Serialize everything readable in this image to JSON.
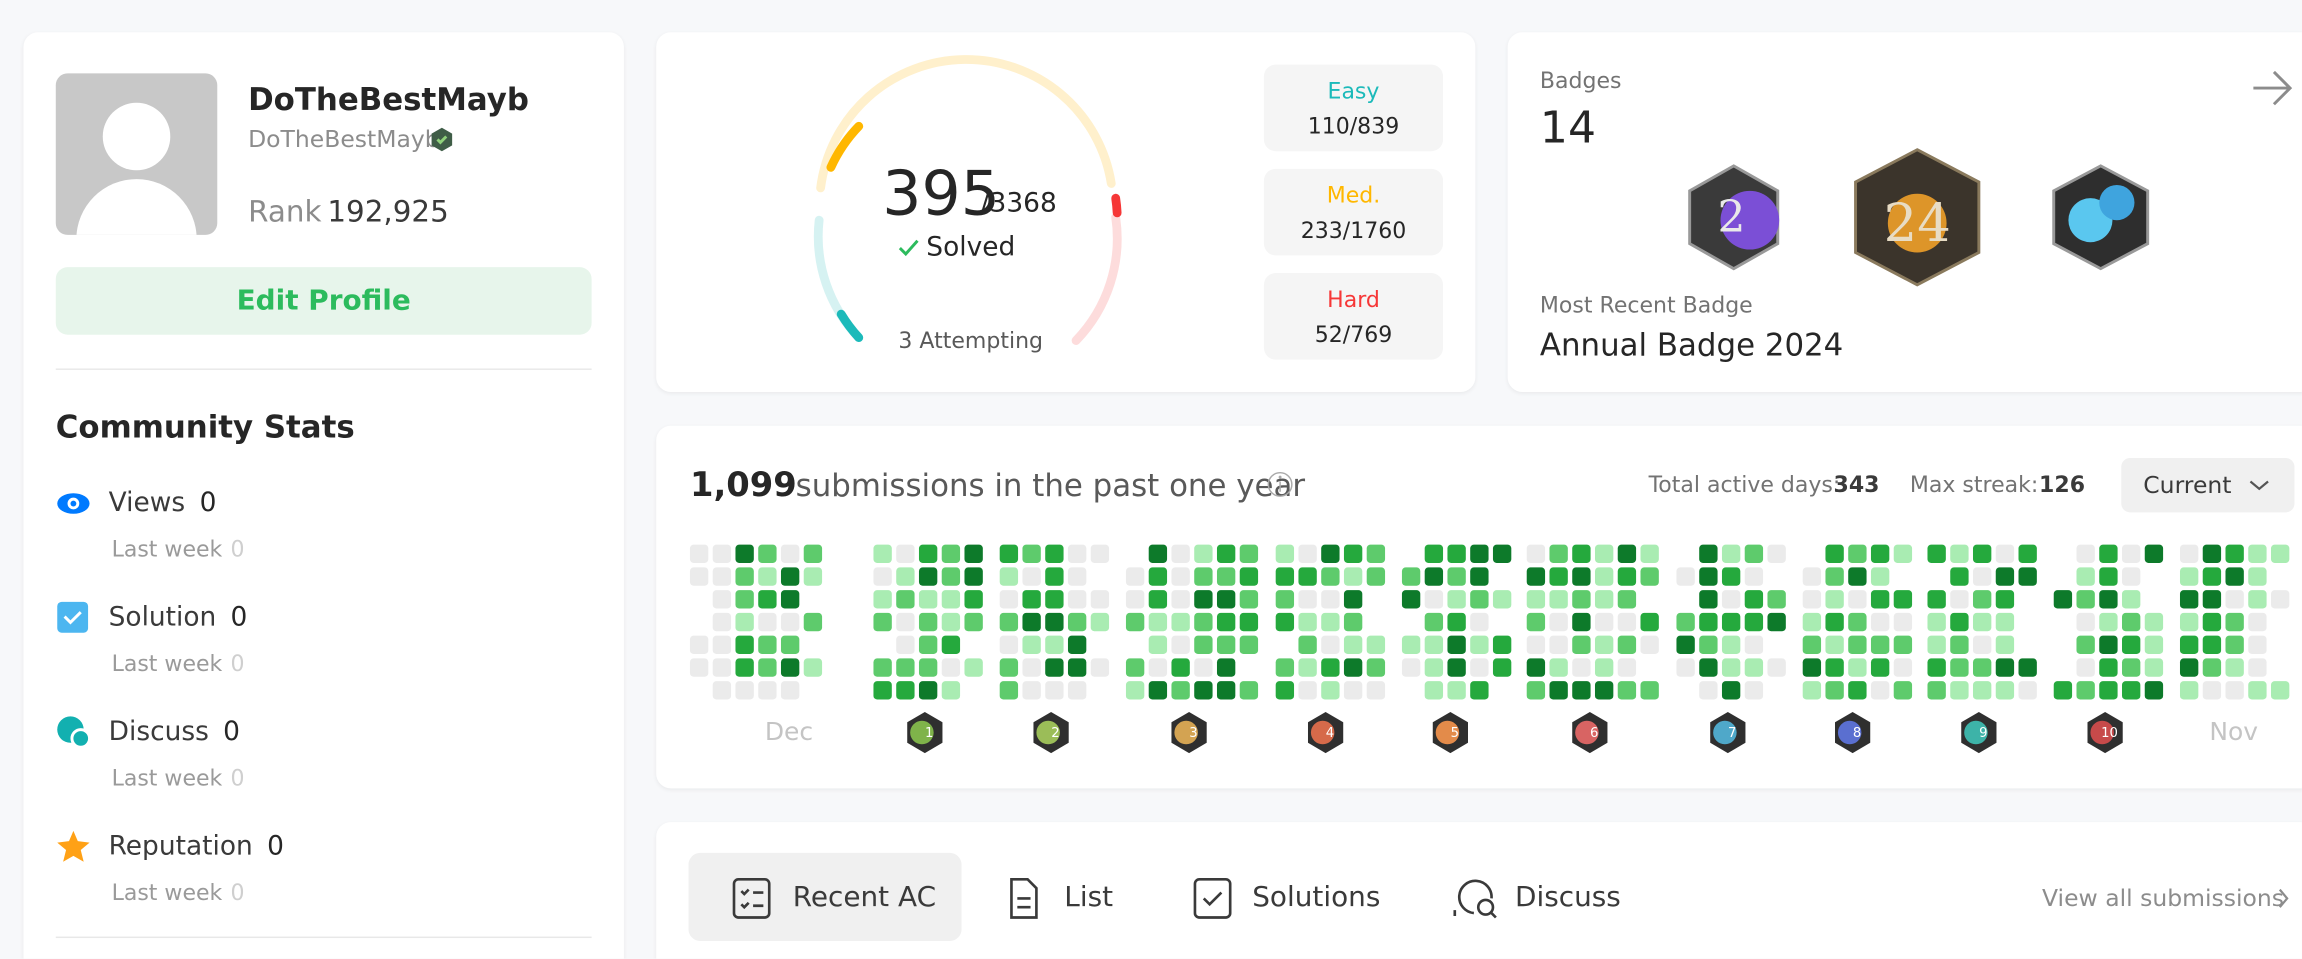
{
  "profile": {
    "name": "DoTheBestMayb",
    "username": "DoTheBestMayb",
    "rank_label": "Rank",
    "rank": "192,925",
    "edit": "Edit Profile"
  },
  "community": {
    "title": "Community Stats",
    "items": [
      {
        "label": "Views",
        "value": 0,
        "sub": "Last week",
        "sub_value": 0
      },
      {
        "label": "Solution",
        "value": 0,
        "sub": "Last week",
        "sub_value": 0
      },
      {
        "label": "Discuss",
        "value": 0,
        "sub": "Last week",
        "sub_value": 0
      },
      {
        "label": "Reputation",
        "value": 0,
        "sub": "Last week",
        "sub_value": 0
      }
    ]
  },
  "solved": {
    "count": 395,
    "total": "/3368",
    "label": "Solved",
    "attempting": "3 Attempting",
    "difficulties": [
      {
        "name": "Easy",
        "value": "110/839"
      },
      {
        "name": "Med.",
        "value": "233/1760"
      },
      {
        "name": "Hard",
        "value": "52/769"
      }
    ]
  },
  "badges": {
    "title": "Badges",
    "count": 14,
    "recent_label": "Most Recent Badge",
    "recent": "Annual Badge 2024"
  },
  "submissions": {
    "count": "1,099",
    "text": "submissions in the past one year",
    "active_label": "Total active days:",
    "active": 343,
    "streak_label": "Max streak:",
    "streak": 126,
    "dropdown": "Current",
    "first_month": "Dec",
    "last_month": "Nov",
    "monthly_badges": [
      1,
      2,
      3,
      4,
      5,
      6,
      7,
      8,
      9,
      10
    ]
  },
  "tabs": {
    "items": [
      "Recent AC",
      "List",
      "Solutions",
      "Discuss"
    ],
    "view_all": "View all submissions"
  }
}
